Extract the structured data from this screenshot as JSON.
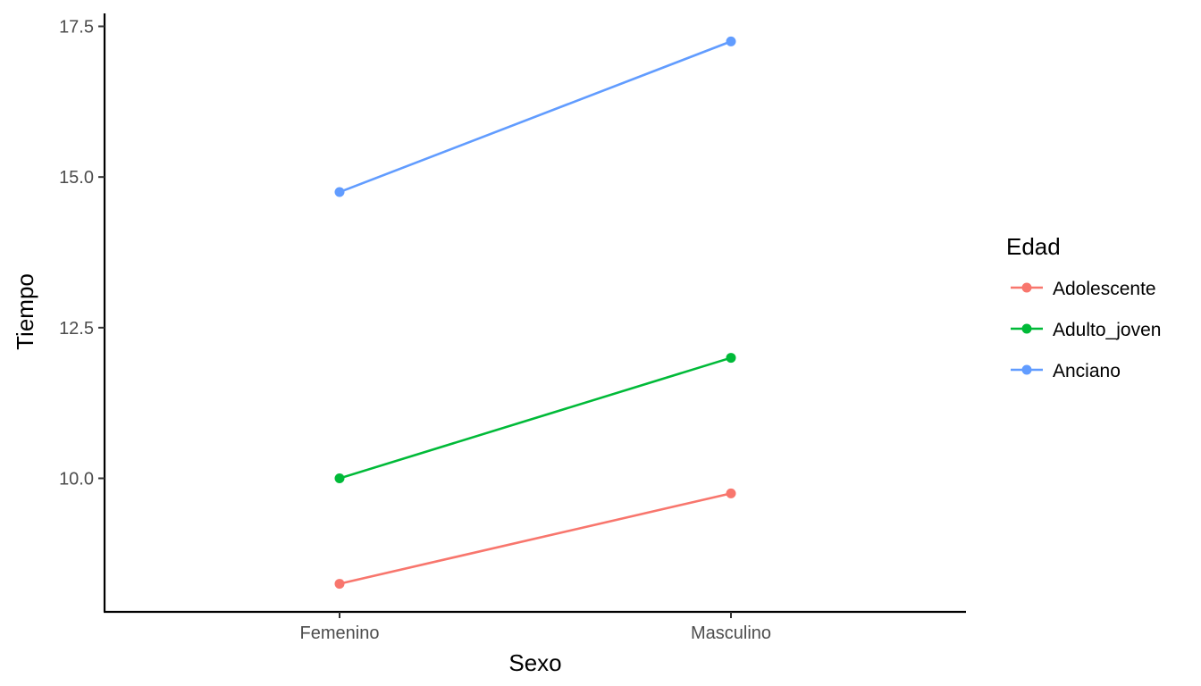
{
  "chart_data": {
    "type": "line",
    "xlabel": "Sexo",
    "ylabel": "Tiempo",
    "categories": [
      "Femenino",
      "Masculino"
    ],
    "ylim": [
      8.0,
      17.7
    ],
    "yticks": [
      10.0,
      12.5,
      15.0,
      17.5
    ],
    "ytick_labels": [
      "10.0",
      "12.5",
      "15.0",
      "17.5"
    ],
    "grid": false,
    "legend": {
      "title": "Edad",
      "placement": "right"
    },
    "series": [
      {
        "name": "Adolescente",
        "color": "#F8766D",
        "values": [
          8.25,
          9.75
        ]
      },
      {
        "name": "Adulto_joven",
        "color": "#00BA38",
        "values": [
          10.0,
          12.0
        ]
      },
      {
        "name": "Anciano",
        "color": "#619CFF",
        "values": [
          14.75,
          17.25
        ]
      }
    ]
  }
}
